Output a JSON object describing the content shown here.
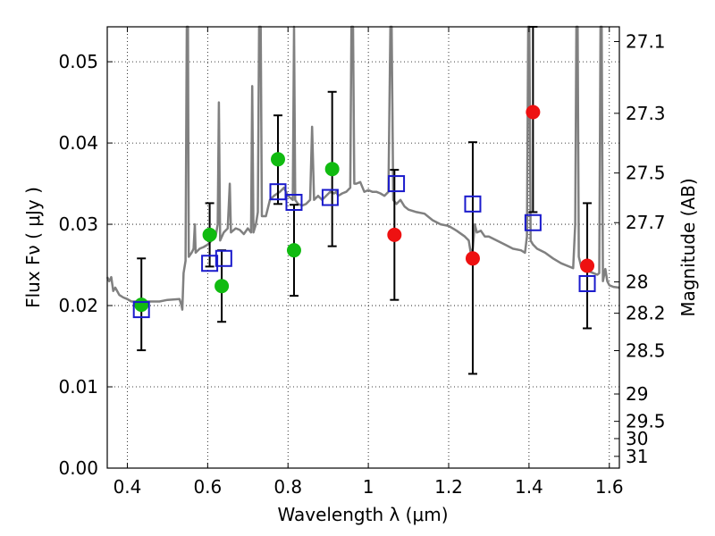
{
  "chart_data": {
    "type": "scatter",
    "xlabel": "Wavelength  λ (μm)",
    "ylabel": "Flux  Fν  ( μJy )",
    "y2label": "Magnitude (AB)",
    "xlim": [
      0.35,
      1.625
    ],
    "ylim": [
      0.0,
      0.0543
    ],
    "x_ticks": [
      0.4,
      0.6,
      0.8,
      1.0,
      1.2,
      1.4,
      1.6
    ],
    "x_tick_labels": [
      "0.4",
      "0.6",
      "0.8",
      "1",
      "1.2",
      "1.4",
      "1.6"
    ],
    "y_ticks": [
      0.0,
      0.01,
      0.02,
      0.03,
      0.04,
      0.05
    ],
    "y_tick_labels": [
      "0.00",
      "0.01",
      "0.02",
      "0.03",
      "0.04",
      "0.05"
    ],
    "mag_ticks": [
      "27.1",
      "27.3",
      "27.5",
      "27.7",
      "28",
      "28.2",
      "28.5",
      "29",
      "29.5",
      "30",
      "31"
    ],
    "grid": true,
    "colors": {
      "green": "#11bb11",
      "red": "#ee1111",
      "model_box": "#1a1acc",
      "sed_line": "#808080",
      "error_bar": "#000000"
    },
    "series": [
      {
        "kind": "observed_detection",
        "marker": "filled-circle",
        "color": "#11bb11",
        "points": [
          {
            "x": 0.435,
            "y": 0.0201,
            "err_low": 0.0145,
            "err_high": 0.0258
          },
          {
            "x": 0.605,
            "y": 0.0287,
            "err_low": 0.0248,
            "err_high": 0.0326
          },
          {
            "x": 0.635,
            "y": 0.0224,
            "err_low": 0.018,
            "err_high": 0.0268
          },
          {
            "x": 0.775,
            "y": 0.038,
            "err_low": 0.0325,
            "err_high": 0.0434
          },
          {
            "x": 0.815,
            "y": 0.0268,
            "err_low": 0.0212,
            "err_high": 0.0324
          },
          {
            "x": 0.91,
            "y": 0.0368,
            "err_low": 0.0273,
            "err_high": 0.0463
          }
        ]
      },
      {
        "kind": "observed_nir",
        "marker": "filled-circle",
        "color": "#ee1111",
        "points": [
          {
            "x": 1.065,
            "y": 0.0287,
            "err_low": 0.0207,
            "err_high": 0.0367
          },
          {
            "x": 1.26,
            "y": 0.0258,
            "err_low": 0.0116,
            "err_high": 0.0401
          },
          {
            "x": 1.41,
            "y": 0.0438,
            "err_low": 0.0315,
            "err_high": 0.0543
          },
          {
            "x": 1.545,
            "y": 0.0249,
            "err_low": 0.0172,
            "err_high": 0.0326
          }
        ]
      },
      {
        "kind": "model_photometry",
        "marker": "open-square",
        "color": "#1a1acc",
        "points": [
          {
            "x": 0.435,
            "y": 0.0195
          },
          {
            "x": 0.605,
            "y": 0.0252
          },
          {
            "x": 0.64,
            "y": 0.0258
          },
          {
            "x": 0.775,
            "y": 0.034
          },
          {
            "x": 0.815,
            "y": 0.0327
          },
          {
            "x": 0.905,
            "y": 0.0333
          },
          {
            "x": 1.07,
            "y": 0.035
          },
          {
            "x": 1.26,
            "y": 0.0325
          },
          {
            "x": 1.41,
            "y": 0.0302
          },
          {
            "x": 1.545,
            "y": 0.0227
          }
        ]
      }
    ],
    "sed_model": [
      [
        0.35,
        0.0235
      ],
      [
        0.355,
        0.023
      ],
      [
        0.36,
        0.0235
      ],
      [
        0.365,
        0.0218
      ],
      [
        0.37,
        0.0222
      ],
      [
        0.38,
        0.0213
      ],
      [
        0.39,
        0.021
      ],
      [
        0.4,
        0.0208
      ],
      [
        0.41,
        0.0205
      ],
      [
        0.42,
        0.0205
      ],
      [
        0.44,
        0.0205
      ],
      [
        0.46,
        0.0205
      ],
      [
        0.48,
        0.0205
      ],
      [
        0.5,
        0.0207
      ],
      [
        0.53,
        0.0208
      ],
      [
        0.535,
        0.02
      ],
      [
        0.537,
        0.0195
      ],
      [
        0.54,
        0.024
      ],
      [
        0.545,
        0.0255
      ],
      [
        0.548,
        0.0543
      ],
      [
        0.551,
        0.0543
      ],
      [
        0.553,
        0.026
      ],
      [
        0.56,
        0.0265
      ],
      [
        0.565,
        0.027
      ],
      [
        0.568,
        0.03
      ],
      [
        0.57,
        0.0265
      ],
      [
        0.58,
        0.027
      ],
      [
        0.59,
        0.0272
      ],
      [
        0.6,
        0.0275
      ],
      [
        0.61,
        0.028
      ],
      [
        0.62,
        0.0285
      ],
      [
        0.625,
        0.03
      ],
      [
        0.628,
        0.045
      ],
      [
        0.631,
        0.028
      ],
      [
        0.64,
        0.029
      ],
      [
        0.65,
        0.0295
      ],
      [
        0.655,
        0.035
      ],
      [
        0.658,
        0.029
      ],
      [
        0.67,
        0.0295
      ],
      [
        0.68,
        0.0293
      ],
      [
        0.69,
        0.0288
      ],
      [
        0.7,
        0.0295
      ],
      [
        0.708,
        0.029
      ],
      [
        0.711,
        0.047
      ],
      [
        0.714,
        0.029
      ],
      [
        0.72,
        0.03
      ],
      [
        0.725,
        0.0315
      ],
      [
        0.728,
        0.0543
      ],
      [
        0.732,
        0.0543
      ],
      [
        0.735,
        0.031
      ],
      [
        0.745,
        0.031
      ],
      [
        0.755,
        0.033
      ],
      [
        0.765,
        0.0335
      ],
      [
        0.78,
        0.034
      ],
      [
        0.79,
        0.0345
      ],
      [
        0.8,
        0.0335
      ],
      [
        0.812,
        0.033
      ],
      [
        0.815,
        0.0543
      ],
      [
        0.818,
        0.033
      ],
      [
        0.825,
        0.0325
      ],
      [
        0.835,
        0.0323
      ],
      [
        0.845,
        0.0325
      ],
      [
        0.855,
        0.033
      ],
      [
        0.86,
        0.042
      ],
      [
        0.865,
        0.033
      ],
      [
        0.875,
        0.0335
      ],
      [
        0.885,
        0.033
      ],
      [
        0.895,
        0.0335
      ],
      [
        0.905,
        0.034
      ],
      [
        0.915,
        0.0338
      ],
      [
        0.92,
        0.034
      ],
      [
        0.925,
        0.0335
      ],
      [
        0.935,
        0.0338
      ],
      [
        0.945,
        0.034
      ],
      [
        0.955,
        0.0345
      ],
      [
        0.958,
        0.0543
      ],
      [
        0.962,
        0.0543
      ],
      [
        0.965,
        0.035
      ],
      [
        0.97,
        0.035
      ],
      [
        0.98,
        0.0352
      ],
      [
        0.99,
        0.034
      ],
      [
        1.0,
        0.0342
      ],
      [
        1.01,
        0.034
      ],
      [
        1.02,
        0.034
      ],
      [
        1.03,
        0.0338
      ],
      [
        1.04,
        0.0335
      ],
      [
        1.05,
        0.034
      ],
      [
        1.055,
        0.0543
      ],
      [
        1.058,
        0.0543
      ],
      [
        1.062,
        0.033
      ],
      [
        1.07,
        0.0325
      ],
      [
        1.08,
        0.033
      ],
      [
        1.09,
        0.0322
      ],
      [
        1.1,
        0.0318
      ],
      [
        1.12,
        0.0315
      ],
      [
        1.14,
        0.0313
      ],
      [
        1.16,
        0.0305
      ],
      [
        1.18,
        0.03
      ],
      [
        1.2,
        0.0298
      ],
      [
        1.22,
        0.0292
      ],
      [
        1.24,
        0.0285
      ],
      [
        1.25,
        0.028
      ],
      [
        1.255,
        0.0265
      ],
      [
        1.26,
        0.027
      ],
      [
        1.265,
        0.03
      ],
      [
        1.27,
        0.029
      ],
      [
        1.28,
        0.0292
      ],
      [
        1.29,
        0.0285
      ],
      [
        1.3,
        0.0285
      ],
      [
        1.32,
        0.028
      ],
      [
        1.34,
        0.0275
      ],
      [
        1.36,
        0.027
      ],
      [
        1.38,
        0.0268
      ],
      [
        1.39,
        0.0265
      ],
      [
        1.395,
        0.0285
      ],
      [
        1.398,
        0.0543
      ],
      [
        1.401,
        0.0543
      ],
      [
        1.404,
        0.028
      ],
      [
        1.41,
        0.0275
      ],
      [
        1.42,
        0.027
      ],
      [
        1.44,
        0.0265
      ],
      [
        1.46,
        0.0258
      ],
      [
        1.48,
        0.0252
      ],
      [
        1.5,
        0.0248
      ],
      [
        1.51,
        0.0246
      ],
      [
        1.515,
        0.03
      ],
      [
        1.518,
        0.0543
      ],
      [
        1.521,
        0.0543
      ],
      [
        1.524,
        0.026
      ],
      [
        1.53,
        0.0248
      ],
      [
        1.54,
        0.0245
      ],
      [
        1.55,
        0.0242
      ],
      [
        1.56,
        0.024
      ],
      [
        1.57,
        0.0238
      ],
      [
        1.575,
        0.024
      ],
      [
        1.578,
        0.0543
      ],
      [
        1.581,
        0.0543
      ],
      [
        1.584,
        0.023
      ],
      [
        1.59,
        0.0245
      ],
      [
        1.595,
        0.023
      ],
      [
        1.6,
        0.0225
      ],
      [
        1.61,
        0.0223
      ],
      [
        1.625,
        0.0222
      ]
    ]
  }
}
